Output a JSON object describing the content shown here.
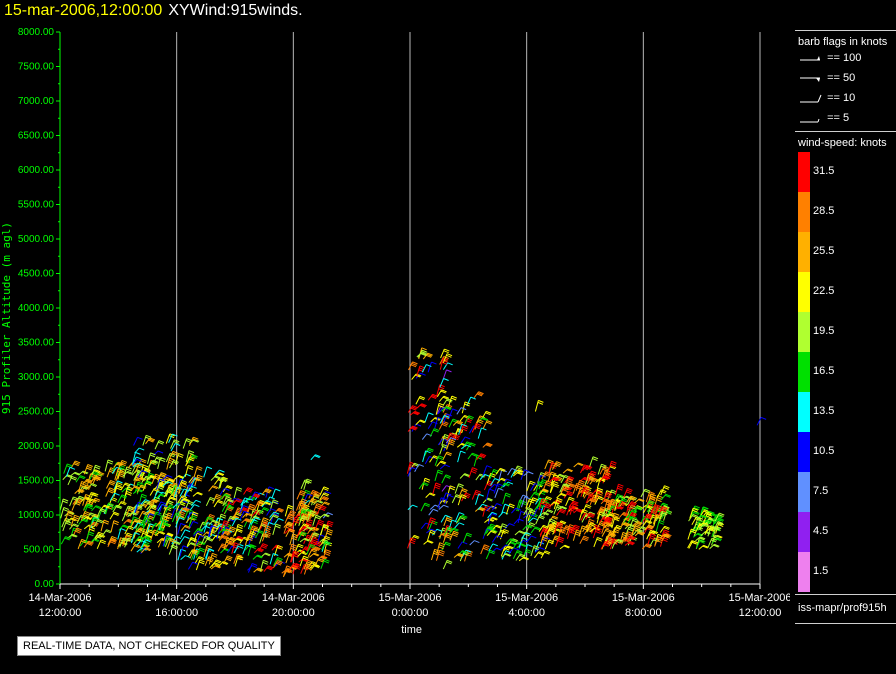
{
  "title": {
    "datetime": "15-mar-2006,12:00:00",
    "name": "XYWind:915winds."
  },
  "chart_data": {
    "type": "scatter",
    "subtype": "wind-barb time-height plot",
    "title": "XYWind:915winds.",
    "xlabel": "time",
    "ylabel": "915 Profiler Altitude (m agl)",
    "ylim": [
      0,
      8000
    ],
    "yticks": [
      "0.00",
      "500.00",
      "1000.00",
      "1500.00",
      "2000.00",
      "2500.00",
      "3000.00",
      "3500.00",
      "4000.00",
      "4500.00",
      "5000.00",
      "5500.00",
      "6000.00",
      "6500.00",
      "7000.00",
      "7500.00",
      "8000.00"
    ],
    "xlim_hours": [
      0,
      24
    ],
    "xticks": [
      {
        "h": 0,
        "date": "14-Mar-2006",
        "time": "12:00:00"
      },
      {
        "h": 4,
        "date": "14-Mar-2006",
        "time": "16:00:00"
      },
      {
        "h": 8,
        "date": "14-Mar-2006",
        "time": "20:00:00"
      },
      {
        "h": 12,
        "date": "15-Mar-2006",
        "time": "0:00:00"
      },
      {
        "h": 16,
        "date": "15-Mar-2006",
        "time": "4:00:00"
      },
      {
        "h": 20,
        "date": "15-Mar-2006",
        "time": "8:00:00"
      },
      {
        "h": 24,
        "date": "15-Mar-2006",
        "time": "12:00:00"
      }
    ],
    "grid": true,
    "clusters": [
      {
        "h0": 0.0,
        "h1": 3.7,
        "alt0": 500,
        "alt1": 1700,
        "speed": [
          14,
          28
        ]
      },
      {
        "h0": 2.4,
        "h1": 4.5,
        "alt0": 400,
        "alt1": 2100,
        "speed": [
          10,
          26
        ]
      },
      {
        "h0": 3.8,
        "h1": 5.6,
        "alt0": 200,
        "alt1": 1600,
        "speed": [
          9,
          28
        ]
      },
      {
        "h0": 5.4,
        "h1": 7.4,
        "alt0": 150,
        "alt1": 1300,
        "speed": [
          10,
          33
        ]
      },
      {
        "h0": 7.6,
        "h1": 8.6,
        "alt0": 100,
        "alt1": 1000,
        "speed": [
          22,
          33
        ]
      },
      {
        "h0": 8.1,
        "h1": 9.1,
        "alt0": 150,
        "alt1": 1400,
        "speed": [
          8,
          31
        ]
      },
      {
        "h0": 11.9,
        "h1": 13.2,
        "alt0": 200,
        "alt1": 3400,
        "speed": [
          4,
          33
        ]
      },
      {
        "h0": 12.8,
        "h1": 14.6,
        "alt0": 300,
        "alt1": 2600,
        "speed": [
          8,
          33
        ]
      },
      {
        "h0": 14.5,
        "h1": 16.5,
        "alt0": 300,
        "alt1": 1600,
        "speed": [
          7,
          24
        ]
      },
      {
        "h0": 16.4,
        "h1": 18.8,
        "alt0": 500,
        "alt1": 1700,
        "speed": [
          20,
          33
        ]
      },
      {
        "h0": 18.5,
        "h1": 20.7,
        "alt0": 500,
        "alt1": 1300,
        "speed": [
          16,
          33
        ]
      },
      {
        "h0": 21.5,
        "h1": 22.5,
        "alt0": 500,
        "alt1": 1000,
        "speed": [
          15,
          24
        ]
      }
    ],
    "isolated_barbs": [
      {
        "h": 8.6,
        "alt": 1800,
        "speed": 15
      },
      {
        "h": 14.2,
        "alt": 2700,
        "speed": 30
      },
      {
        "h": 16.3,
        "alt": 2500,
        "speed": 24
      },
      {
        "h": 23.9,
        "alt": 2300,
        "speed": 10
      }
    ]
  },
  "legend": {
    "barb_header": "barb flags in knots",
    "barb_flags": [
      "== 100",
      "== 50",
      "== 10",
      "== 5"
    ],
    "speed_header": "wind-speed: knots",
    "colorbar": [
      {
        "label": "31.5",
        "color": "#ff0000"
      },
      {
        "label": "28.5",
        "color": "#ff8000"
      },
      {
        "label": "25.5",
        "color": "#ffb000"
      },
      {
        "label": "22.5",
        "color": "#ffff00"
      },
      {
        "label": "19.5",
        "color": "#b0ff30"
      },
      {
        "label": "16.5",
        "color": "#00e000"
      },
      {
        "label": "13.5",
        "color": "#00ffff"
      },
      {
        "label": "10.5",
        "color": "#0000ff"
      },
      {
        "label": "7.5",
        "color": "#6090ff"
      },
      {
        "label": "4.5",
        "color": "#9020f0"
      },
      {
        "label": "1.5",
        "color": "#ee80ee"
      }
    ],
    "source": "iss-mapr/prof915h"
  },
  "qc_notice": "REAL-TIME DATA, NOT CHECKED FOR QUALITY"
}
